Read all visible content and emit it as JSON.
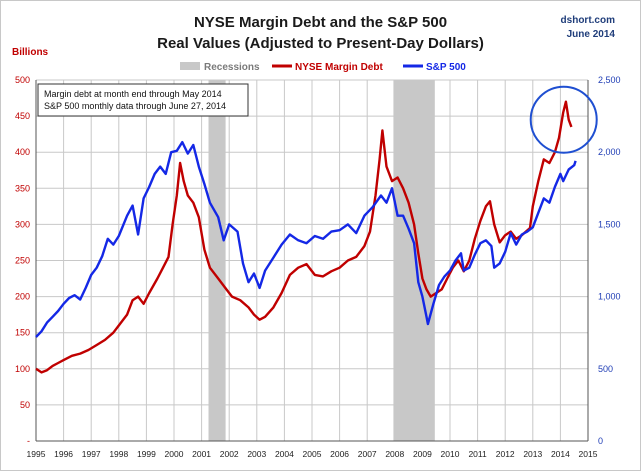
{
  "header": {
    "title_line1": "NYSE Margin Debt and the S&P 500",
    "title_line2": "Real Values (Adjusted to Present-Day Dollars)",
    "credit_site": "dshort.com",
    "credit_date": "June 2014"
  },
  "colors": {
    "margin_debt": "#c00000",
    "sp500": "#1428e6",
    "recession": "#c8c8c8",
    "grid": "#c8c8c8",
    "circle": "#1f4fd1"
  },
  "chart_data": {
    "type": "line",
    "grid": true,
    "legend_placement": "top-center",
    "x_ticks": [
      "1995",
      "1996",
      "1997",
      "1998",
      "1999",
      "2000",
      "2001",
      "2002",
      "2003",
      "2004",
      "2005",
      "2006",
      "2007",
      "2008",
      "2009",
      "2010",
      "2011",
      "2012",
      "2013",
      "2014",
      "2015"
    ],
    "xlim": [
      1995,
      2015
    ],
    "left_axis": {
      "label": "Billions",
      "ylim": [
        0,
        500
      ],
      "ticks": [
        0,
        50,
        100,
        150,
        200,
        250,
        300,
        350,
        400,
        450,
        500
      ],
      "tick_labels": [
        "-",
        "50",
        "100",
        "150",
        "200",
        "250",
        "300",
        "350",
        "400",
        "450",
        "500"
      ]
    },
    "right_axis": {
      "ylim": [
        0,
        2500
      ],
      "ticks": [
        0,
        500,
        1000,
        1500,
        2000,
        2500
      ],
      "tick_labels": [
        "0",
        "500",
        "1,000",
        "1,500",
        "2,000",
        "2,500"
      ]
    },
    "legend": [
      {
        "name": "Recessions",
        "kind": "box"
      },
      {
        "name": "NYSE Margin Debt",
        "kind": "line"
      },
      {
        "name": "S&P 500",
        "kind": "line"
      }
    ],
    "recessions": [
      {
        "start": 2001.25,
        "end": 2001.87
      },
      {
        "start": 2007.95,
        "end": 2009.45
      }
    ],
    "annotation": {
      "lines": [
        "Margin debt at month end through May 2014",
        "S&P 500 monthly data through June 27, 2014"
      ]
    },
    "series": [
      {
        "name": "NYSE Margin Debt",
        "axis": "left",
        "points": [
          [
            1995.0,
            100
          ],
          [
            1995.2,
            95
          ],
          [
            1995.4,
            98
          ],
          [
            1995.6,
            104
          ],
          [
            1995.8,
            108
          ],
          [
            1996.0,
            112
          ],
          [
            1996.3,
            118
          ],
          [
            1996.6,
            121
          ],
          [
            1996.9,
            126
          ],
          [
            1997.2,
            133
          ],
          [
            1997.5,
            140
          ],
          [
            1997.8,
            150
          ],
          [
            1998.0,
            160
          ],
          [
            1998.3,
            175
          ],
          [
            1998.5,
            195
          ],
          [
            1998.7,
            200
          ],
          [
            1998.9,
            190
          ],
          [
            1999.1,
            205
          ],
          [
            1999.4,
            225
          ],
          [
            1999.6,
            240
          ],
          [
            1999.8,
            255
          ],
          [
            1999.95,
            300
          ],
          [
            2000.1,
            340
          ],
          [
            2000.22,
            385
          ],
          [
            2000.35,
            360
          ],
          [
            2000.5,
            340
          ],
          [
            2000.7,
            330
          ],
          [
            2000.9,
            310
          ],
          [
            2001.1,
            265
          ],
          [
            2001.3,
            240
          ],
          [
            2001.6,
            225
          ],
          [
            2001.9,
            210
          ],
          [
            2002.1,
            200
          ],
          [
            2002.4,
            195
          ],
          [
            2002.7,
            185
          ],
          [
            2002.9,
            175
          ],
          [
            2003.1,
            168
          ],
          [
            2003.3,
            172
          ],
          [
            2003.6,
            185
          ],
          [
            2003.9,
            205
          ],
          [
            2004.2,
            230
          ],
          [
            2004.5,
            240
          ],
          [
            2004.8,
            245
          ],
          [
            2005.1,
            230
          ],
          [
            2005.4,
            228
          ],
          [
            2005.7,
            235
          ],
          [
            2006.0,
            240
          ],
          [
            2006.3,
            250
          ],
          [
            2006.6,
            255
          ],
          [
            2006.9,
            270
          ],
          [
            2007.1,
            290
          ],
          [
            2007.3,
            340
          ],
          [
            2007.45,
            390
          ],
          [
            2007.55,
            430
          ],
          [
            2007.7,
            380
          ],
          [
            2007.9,
            360
          ],
          [
            2008.1,
            365
          ],
          [
            2008.3,
            350
          ],
          [
            2008.5,
            330
          ],
          [
            2008.7,
            300
          ],
          [
            2008.85,
            260
          ],
          [
            2009.0,
            225
          ],
          [
            2009.15,
            210
          ],
          [
            2009.3,
            200
          ],
          [
            2009.5,
            205
          ],
          [
            2009.7,
            210
          ],
          [
            2009.9,
            225
          ],
          [
            2010.1,
            240
          ],
          [
            2010.3,
            250
          ],
          [
            2010.5,
            235
          ],
          [
            2010.7,
            250
          ],
          [
            2010.9,
            280
          ],
          [
            2011.1,
            305
          ],
          [
            2011.3,
            325
          ],
          [
            2011.45,
            332
          ],
          [
            2011.6,
            300
          ],
          [
            2011.8,
            275
          ],
          [
            2012.0,
            285
          ],
          [
            2012.2,
            290
          ],
          [
            2012.4,
            280
          ],
          [
            2012.6,
            285
          ],
          [
            2012.9,
            295
          ],
          [
            2013.0,
            325
          ],
          [
            2013.2,
            360
          ],
          [
            2013.4,
            390
          ],
          [
            2013.6,
            385
          ],
          [
            2013.8,
            400
          ],
          [
            2013.95,
            420
          ],
          [
            2014.1,
            455
          ],
          [
            2014.2,
            470
          ],
          [
            2014.3,
            445
          ],
          [
            2014.4,
            435
          ]
        ]
      },
      {
        "name": "S&P 500",
        "axis": "right",
        "points": [
          [
            1995.0,
            720
          ],
          [
            1995.2,
            760
          ],
          [
            1995.4,
            820
          ],
          [
            1995.6,
            860
          ],
          [
            1995.8,
            900
          ],
          [
            1996.0,
            950
          ],
          [
            1996.2,
            990
          ],
          [
            1996.4,
            1010
          ],
          [
            1996.6,
            980
          ],
          [
            1996.8,
            1060
          ],
          [
            1997.0,
            1150
          ],
          [
            1997.2,
            1200
          ],
          [
            1997.4,
            1280
          ],
          [
            1997.6,
            1400
          ],
          [
            1997.8,
            1360
          ],
          [
            1998.0,
            1420
          ],
          [
            1998.3,
            1560
          ],
          [
            1998.5,
            1630
          ],
          [
            1998.7,
            1430
          ],
          [
            1998.9,
            1680
          ],
          [
            1999.1,
            1760
          ],
          [
            1999.3,
            1850
          ],
          [
            1999.5,
            1900
          ],
          [
            1999.7,
            1850
          ],
          [
            1999.9,
            2000
          ],
          [
            2000.1,
            2010
          ],
          [
            2000.3,
            2070
          ],
          [
            2000.5,
            1990
          ],
          [
            2000.7,
            2050
          ],
          [
            2000.9,
            1900
          ],
          [
            2001.1,
            1780
          ],
          [
            2001.3,
            1650
          ],
          [
            2001.6,
            1550
          ],
          [
            2001.8,
            1390
          ],
          [
            2002.0,
            1500
          ],
          [
            2002.3,
            1450
          ],
          [
            2002.5,
            1230
          ],
          [
            2002.7,
            1100
          ],
          [
            2002.9,
            1160
          ],
          [
            2003.1,
            1060
          ],
          [
            2003.3,
            1180
          ],
          [
            2003.6,
            1270
          ],
          [
            2003.9,
            1360
          ],
          [
            2004.2,
            1430
          ],
          [
            2004.5,
            1390
          ],
          [
            2004.8,
            1370
          ],
          [
            2005.1,
            1420
          ],
          [
            2005.4,
            1400
          ],
          [
            2005.7,
            1450
          ],
          [
            2006.0,
            1460
          ],
          [
            2006.3,
            1500
          ],
          [
            2006.6,
            1440
          ],
          [
            2006.9,
            1560
          ],
          [
            2007.2,
            1620
          ],
          [
            2007.5,
            1700
          ],
          [
            2007.7,
            1650
          ],
          [
            2007.9,
            1750
          ],
          [
            2008.1,
            1560
          ],
          [
            2008.3,
            1560
          ],
          [
            2008.5,
            1470
          ],
          [
            2008.7,
            1370
          ],
          [
            2008.85,
            1100
          ],
          [
            2009.0,
            1000
          ],
          [
            2009.15,
            860
          ],
          [
            2009.2,
            810
          ],
          [
            2009.4,
            950
          ],
          [
            2009.6,
            1080
          ],
          [
            2009.8,
            1140
          ],
          [
            2010.0,
            1180
          ],
          [
            2010.2,
            1250
          ],
          [
            2010.4,
            1300
          ],
          [
            2010.5,
            1180
          ],
          [
            2010.7,
            1200
          ],
          [
            2010.9,
            1290
          ],
          [
            2011.1,
            1370
          ],
          [
            2011.3,
            1390
          ],
          [
            2011.5,
            1350
          ],
          [
            2011.6,
            1200
          ],
          [
            2011.8,
            1230
          ],
          [
            2012.0,
            1310
          ],
          [
            2012.2,
            1440
          ],
          [
            2012.4,
            1360
          ],
          [
            2012.6,
            1430
          ],
          [
            2012.8,
            1450
          ],
          [
            2013.0,
            1480
          ],
          [
            2013.2,
            1580
          ],
          [
            2013.4,
            1680
          ],
          [
            2013.6,
            1650
          ],
          [
            2013.8,
            1760
          ],
          [
            2014.0,
            1850
          ],
          [
            2014.1,
            1800
          ],
          [
            2014.3,
            1880
          ],
          [
            2014.5,
            1910
          ],
          [
            2014.55,
            1940
          ]
        ]
      }
    ]
  }
}
